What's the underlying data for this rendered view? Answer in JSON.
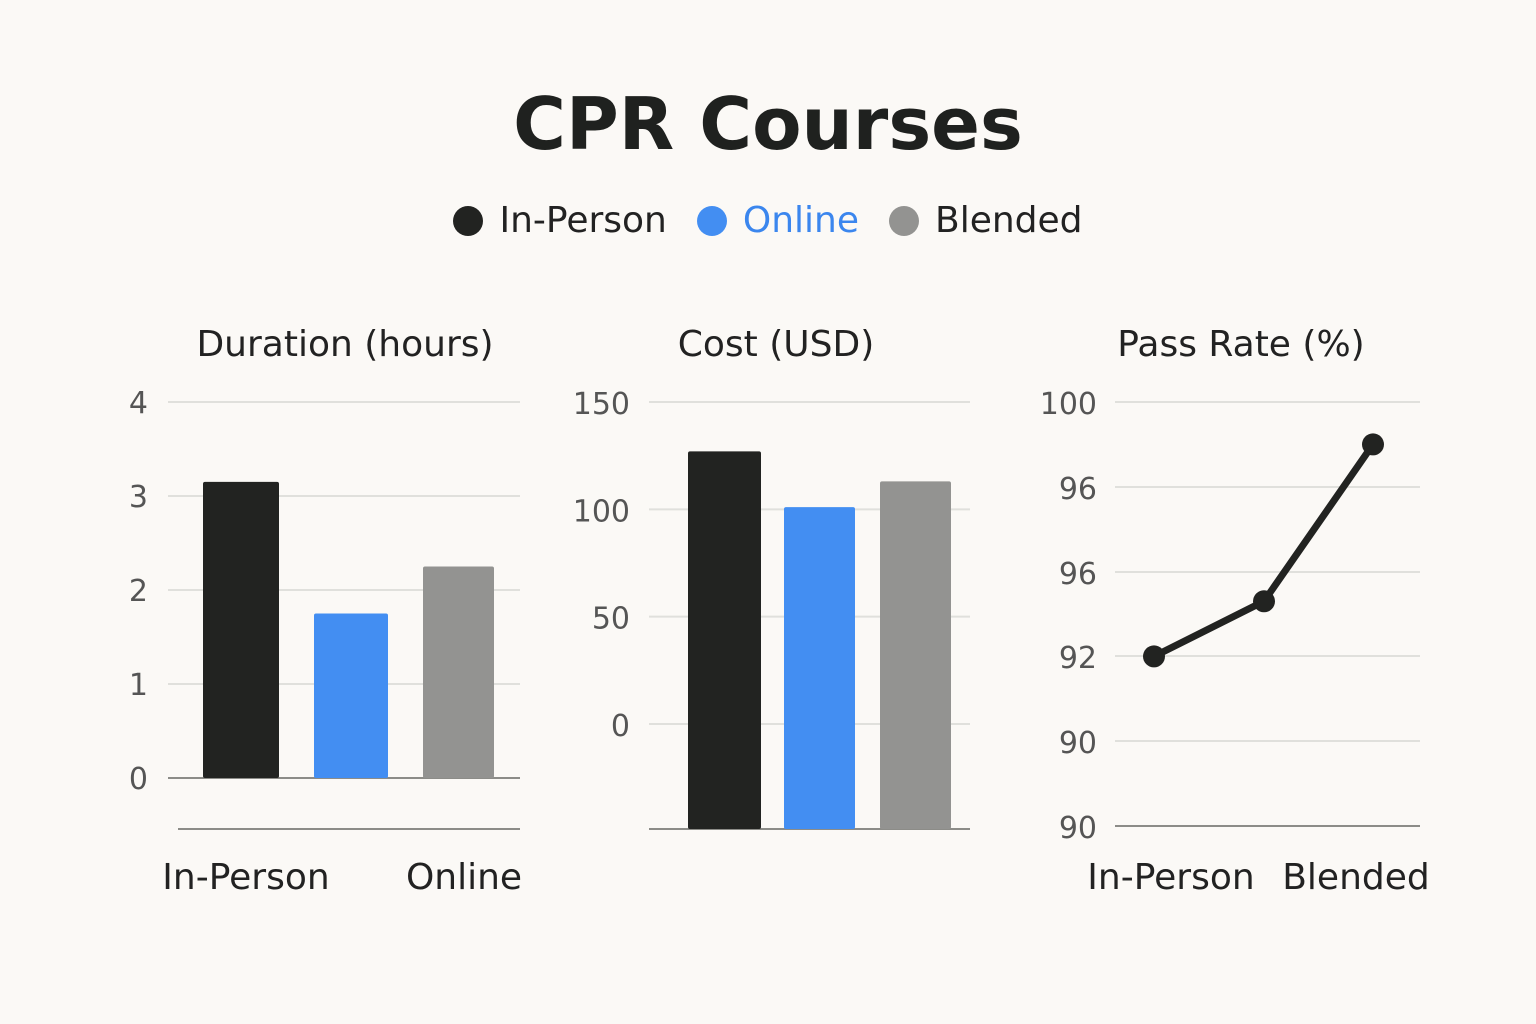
{
  "colors": {
    "in_person": "#222321",
    "online": "#438ef2",
    "blended": "#939391",
    "grid": "#e0e0dc",
    "axis": "#8c8c88"
  },
  "chart_data": {
    "title": "CPR Courses",
    "legend": [
      {
        "label": "In-Person",
        "color": "#222321",
        "text_color": "#222"
      },
      {
        "label": "Online",
        "color": "#438ef2",
        "text_color": "#3b86ee"
      },
      {
        "label": "Blended",
        "color": "#939391",
        "text_color": "#222"
      }
    ],
    "charts": [
      {
        "type": "bar",
        "title": "Duration (hours)",
        "categories": [
          "In-Person",
          "Online",
          "Blended"
        ],
        "values": [
          3.15,
          1.75,
          2.25
        ],
        "ylim": [
          0,
          4
        ],
        "yticks": [
          0,
          1,
          2,
          3,
          4
        ],
        "ytick_labels": [
          "0",
          "1",
          "2",
          "3",
          "4"
        ],
        "xtick_labels": [
          "In-Person",
          "Online"
        ]
      },
      {
        "type": "bar",
        "title": "Cost (USD)",
        "categories": [
          "In-Person",
          "Online",
          "Blended"
        ],
        "values": [
          127,
          101,
          113
        ],
        "yticks": [
          0,
          50,
          100,
          150
        ],
        "ytick_labels": [
          "0",
          "50",
          "100",
          "150"
        ],
        "xtick_labels": []
      },
      {
        "type": "line",
        "title": "Pass Rate (%)",
        "categories": [
          "In-Person",
          "Online",
          "Blended"
        ],
        "ytick_labels": [
          "100",
          "96",
          "96",
          "92",
          "90",
          "90"
        ],
        "values_on_tick_scale": [
          2,
          2.65,
          4.5
        ],
        "xtick_labels": [
          "In-Person",
          "Blended"
        ]
      }
    ]
  }
}
